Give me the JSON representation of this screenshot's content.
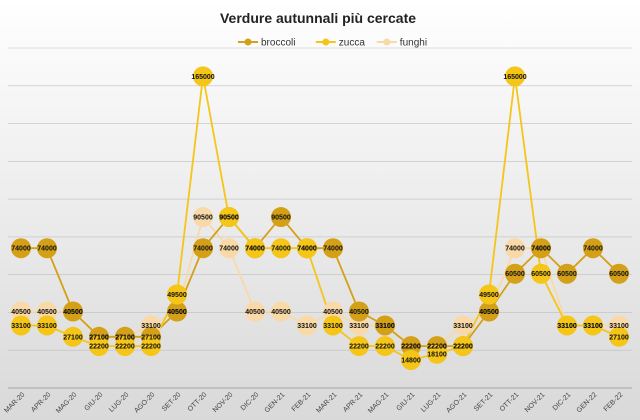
{
  "chart_data": {
    "type": "line",
    "title": "Verdure autunnali più cercate",
    "categories": [
      "MAR-20",
      "APR-20",
      "MAG-20",
      "GIU-20",
      "LUG-20",
      "AGO-20",
      "SET-20",
      "OTT-20",
      "NOV-20",
      "DIC-20",
      "GEN-21",
      "FEB-21",
      "MAR-21",
      "APR-21",
      "MAG-21",
      "GIU-21",
      "LUG-21",
      "AGO-21",
      "SET-21",
      "OTT-21",
      "NOV-21",
      "DIC-21",
      "GEN-22",
      "FEB-22"
    ],
    "series": [
      {
        "name": "broccoli",
        "color": "#d4a017",
        "values": [
          74000,
          74000,
          40500,
          27100,
          27100,
          27100,
          40500,
          74000,
          90500,
          74000,
          90500,
          74000,
          74000,
          40500,
          33100,
          22200,
          22200,
          22200,
          40500,
          60500,
          74000,
          60500,
          74000,
          60500
        ]
      },
      {
        "name": "zucca",
        "color": "#f5c518",
        "values": [
          33100,
          33100,
          27100,
          22200,
          22200,
          22200,
          49500,
          165000,
          90500,
          74000,
          74000,
          74000,
          33100,
          22200,
          22200,
          14800,
          18100,
          22200,
          49500,
          165000,
          60500,
          33100,
          33100,
          27100
        ]
      },
      {
        "name": "funghi",
        "color": "#f9d9a8",
        "values": [
          40500,
          40500,
          40500,
          27100,
          27100,
          33100,
          40500,
          90500,
          74000,
          40500,
          40500,
          33100,
          40500,
          33100,
          33100,
          22200,
          22200,
          33100,
          40500,
          74000,
          74000,
          33100,
          33100,
          33100
        ]
      }
    ],
    "ylim": [
      0,
      180000
    ],
    "grid": true,
    "legend": "top-center"
  }
}
